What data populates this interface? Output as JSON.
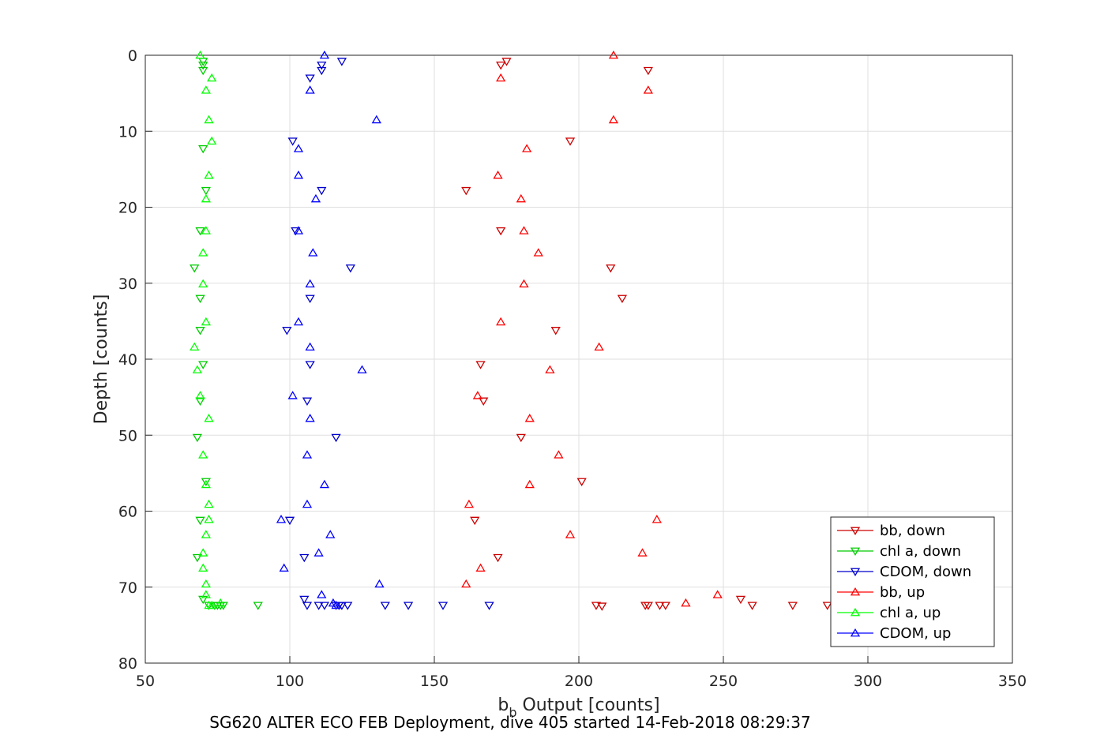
{
  "caption": "SG620 ALTER ECO FEB Deployment, dive 405 started 14-Feb-2018 08:29:37",
  "chart_data": {
    "type": "scatter",
    "title": "",
    "xlabel_main": "b",
    "xlabel_sub": "b",
    "xlabel_rest": " Output [counts]",
    "ylabel": "Depth [counts]",
    "xlim": [
      50,
      350
    ],
    "ylim": [
      0,
      80
    ],
    "y_reversed": true,
    "grid": true,
    "legend_position": "bottom-right",
    "xticks": [
      50,
      100,
      150,
      200,
      250,
      300,
      350
    ],
    "xtick_labels": [
      "50",
      "100",
      "150",
      "200",
      "250",
      "300",
      "350"
    ],
    "yticks": [
      0,
      10,
      20,
      30,
      40,
      50,
      60,
      70,
      80
    ],
    "ytick_labels": [
      "0",
      "10",
      "20",
      "30",
      "40",
      "50",
      "60",
      "70",
      "80"
    ],
    "series": [
      {
        "name": "bb, down",
        "color": "#cc0000",
        "marker": "triangle-down",
        "points": [
          [
            175,
            0.8
          ],
          [
            173,
            1.3
          ],
          [
            224,
            2
          ],
          [
            197,
            11.3
          ],
          [
            161,
            17.8
          ],
          [
            173,
            23.1
          ],
          [
            211,
            28
          ],
          [
            215,
            32
          ],
          [
            192,
            36.2
          ],
          [
            166,
            40.7
          ],
          [
            167,
            45.5
          ],
          [
            180,
            50.3
          ],
          [
            201,
            56.1
          ],
          [
            164,
            61.2
          ],
          [
            172,
            66.1
          ],
          [
            206,
            72.4
          ],
          [
            208,
            72.5
          ],
          [
            223,
            72.4
          ],
          [
            224,
            72.4
          ],
          [
            228,
            72.4
          ],
          [
            230,
            72.4
          ],
          [
            256,
            71.6
          ],
          [
            260,
            72.4
          ],
          [
            274,
            72.4
          ],
          [
            286,
            72.4
          ]
        ]
      },
      {
        "name": "chl a, down",
        "color": "#00cc00",
        "marker": "triangle-down",
        "points": [
          [
            70,
            0.8
          ],
          [
            70,
            1.3
          ],
          [
            70,
            2
          ],
          [
            70,
            12.3
          ],
          [
            71,
            17.8
          ],
          [
            69,
            23.1
          ],
          [
            67,
            28
          ],
          [
            69,
            32
          ],
          [
            69,
            36.2
          ],
          [
            70,
            40.7
          ],
          [
            69,
            45.5
          ],
          [
            68,
            50.3
          ],
          [
            71,
            56.1
          ],
          [
            69,
            61.2
          ],
          [
            68,
            66.1
          ],
          [
            70,
            71.6
          ],
          [
            72,
            72.4
          ],
          [
            74,
            72.4
          ],
          [
            75,
            72.4
          ],
          [
            76,
            72.4
          ],
          [
            77,
            72.4
          ],
          [
            89,
            72.4
          ]
        ]
      },
      {
        "name": "CDOM, down",
        "color": "#0000cc",
        "marker": "triangle-down",
        "points": [
          [
            118,
            0.8
          ],
          [
            111,
            1.3
          ],
          [
            111,
            2
          ],
          [
            107,
            3
          ],
          [
            101,
            11.3
          ],
          [
            111,
            17.8
          ],
          [
            102,
            23.1
          ],
          [
            121,
            28
          ],
          [
            107,
            32
          ],
          [
            99,
            36.2
          ],
          [
            107,
            40.7
          ],
          [
            106,
            45.5
          ],
          [
            116,
            50.3
          ],
          [
            100,
            61.2
          ],
          [
            105,
            66.1
          ],
          [
            105,
            71.6
          ],
          [
            106,
            72.4
          ],
          [
            110,
            72.4
          ],
          [
            112,
            72.4
          ],
          [
            116,
            72.4
          ],
          [
            117,
            72.4
          ],
          [
            118,
            72.4
          ],
          [
            120,
            72.4
          ],
          [
            133,
            72.4
          ],
          [
            141,
            72.4
          ],
          [
            153,
            72.4
          ],
          [
            169,
            72.4
          ]
        ]
      },
      {
        "name": "bb, up",
        "color": "#ff0000",
        "marker": "triangle-up",
        "points": [
          [
            212,
            0
          ],
          [
            173,
            3
          ],
          [
            224,
            4.6
          ],
          [
            212,
            8.5
          ],
          [
            182,
            12.3
          ],
          [
            172,
            15.8
          ],
          [
            180,
            18.9
          ],
          [
            181,
            23.1
          ],
          [
            186,
            26
          ],
          [
            181,
            30.1
          ],
          [
            173,
            35.1
          ],
          [
            207,
            38.4
          ],
          [
            190,
            41.4
          ],
          [
            165,
            44.8
          ],
          [
            183,
            47.8
          ],
          [
            193,
            52.6
          ],
          [
            183,
            56.5
          ],
          [
            162,
            59.1
          ],
          [
            227,
            61.1
          ],
          [
            197,
            63.1
          ],
          [
            222,
            65.5
          ],
          [
            166,
            67.5
          ],
          [
            161,
            69.6
          ],
          [
            237,
            72.1
          ],
          [
            248,
            71
          ]
        ]
      },
      {
        "name": "chl a, up",
        "color": "#00ff00",
        "marker": "triangle-up",
        "points": [
          [
            69,
            0
          ],
          [
            73,
            3
          ],
          [
            71,
            4.6
          ],
          [
            72,
            8.5
          ],
          [
            73,
            11.3
          ],
          [
            72,
            15.8
          ],
          [
            71,
            18.9
          ],
          [
            71,
            23.1
          ],
          [
            70,
            26
          ],
          [
            70,
            30.1
          ],
          [
            71,
            35.1
          ],
          [
            67,
            38.4
          ],
          [
            68,
            41.4
          ],
          [
            69,
            44.8
          ],
          [
            72,
            47.8
          ],
          [
            70,
            52.6
          ],
          [
            71,
            56.5
          ],
          [
            72,
            59.1
          ],
          [
            72,
            61.1
          ],
          [
            71,
            63.1
          ],
          [
            70,
            65.5
          ],
          [
            70,
            67.5
          ],
          [
            71,
            69.6
          ],
          [
            71,
            71
          ],
          [
            72,
            72.4
          ],
          [
            73,
            72.4
          ],
          [
            76,
            72.1
          ]
        ]
      },
      {
        "name": "CDOM, up",
        "color": "#0000ff",
        "marker": "triangle-up",
        "points": [
          [
            112,
            0
          ],
          [
            107,
            4.6
          ],
          [
            130,
            8.5
          ],
          [
            103,
            12.3
          ],
          [
            103,
            15.8
          ],
          [
            109,
            18.9
          ],
          [
            103,
            23.1
          ],
          [
            108,
            26
          ],
          [
            107,
            30.1
          ],
          [
            103,
            35.1
          ],
          [
            107,
            38.4
          ],
          [
            125,
            41.4
          ],
          [
            101,
            44.8
          ],
          [
            107,
            47.8
          ],
          [
            106,
            52.6
          ],
          [
            112,
            56.5
          ],
          [
            106,
            59.1
          ],
          [
            97,
            61.1
          ],
          [
            114,
            63.1
          ],
          [
            110,
            65.5
          ],
          [
            98,
            67.5
          ],
          [
            131,
            69.6
          ],
          [
            111,
            71
          ],
          [
            115,
            72.1
          ],
          [
            116,
            72.4
          ]
        ]
      }
    ]
  }
}
